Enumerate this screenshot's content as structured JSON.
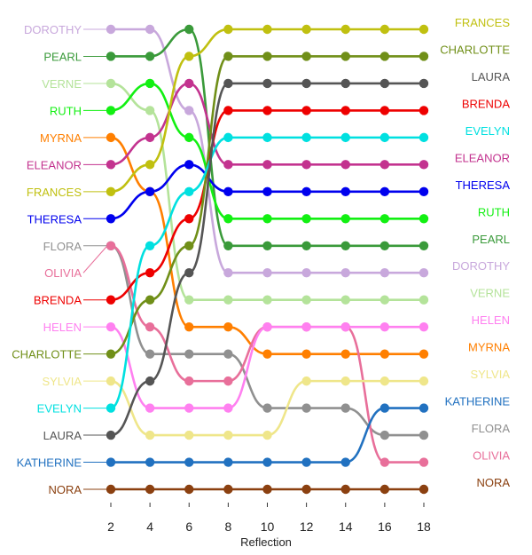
{
  "chart_data": {
    "type": "line",
    "subtype": "bump",
    "xlabel": "Reflection",
    "x": [
      2,
      4,
      6,
      8,
      10,
      12,
      14,
      16,
      18
    ],
    "xticks": [
      "2",
      "4",
      "6",
      "8",
      "10",
      "12",
      "14",
      "16",
      "18"
    ],
    "ylim": [
      1,
      18
    ],
    "grid": false,
    "legend": "none",
    "series": [
      {
        "name": "DOROTHY",
        "color": "#c8a8dc",
        "ranks": [
          1,
          1,
          4,
          10,
          10,
          10,
          10,
          10,
          10
        ]
      },
      {
        "name": "PEARL",
        "color": "#3a9a3a",
        "ranks": [
          2,
          2,
          1,
          9,
          9,
          9,
          9,
          9,
          9
        ]
      },
      {
        "name": "VERNE",
        "color": "#b4e39a",
        "ranks": [
          3,
          4,
          11,
          11,
          11,
          11,
          11,
          11,
          11
        ]
      },
      {
        "name": "RUTH",
        "color": "#12f012",
        "ranks": [
          4,
          3,
          5,
          8,
          8,
          8,
          8,
          8,
          8
        ]
      },
      {
        "name": "MYRNA",
        "color": "#ff7f00",
        "ranks": [
          5,
          7,
          12,
          12,
          13,
          13,
          13,
          13,
          13
        ]
      },
      {
        "name": "ELEANOR",
        "color": "#c3338f",
        "ranks": [
          6,
          5,
          3,
          6,
          6,
          6,
          6,
          6,
          6
        ]
      },
      {
        "name": "FRANCES",
        "color": "#c0c010",
        "ranks": [
          7,
          6,
          2,
          1,
          1,
          1,
          1,
          1,
          1
        ]
      },
      {
        "name": "THERESA",
        "color": "#0000ee",
        "ranks": [
          8,
          7,
          6,
          7,
          7,
          7,
          7,
          7,
          7
        ]
      },
      {
        "name": "FLORA",
        "color": "#909090",
        "ranks": [
          9,
          13,
          13,
          13,
          15,
          15,
          15,
          16,
          16
        ]
      },
      {
        "name": "OLIVIA",
        "color": "#e86f9a",
        "ranks": [
          9,
          12,
          14,
          14,
          12,
          12,
          12,
          17,
          17
        ]
      },
      {
        "name": "BRENDA",
        "color": "#ee0000",
        "ranks": [
          11,
          10,
          8,
          4,
          4,
          4,
          4,
          4,
          4
        ]
      },
      {
        "name": "HELEN",
        "color": "#ff80f0",
        "ranks": [
          12,
          15,
          15,
          15,
          12,
          12,
          12,
          12,
          12
        ]
      },
      {
        "name": "CHARLOTTE",
        "color": "#708f18",
        "ranks": [
          13,
          11,
          9,
          2,
          2,
          2,
          2,
          2,
          2
        ]
      },
      {
        "name": "SYLVIA",
        "color": "#efe68a",
        "ranks": [
          14,
          16,
          16,
          16,
          16,
          14,
          14,
          14,
          14
        ]
      },
      {
        "name": "EVELYN",
        "color": "#00e0e0",
        "ranks": [
          15,
          9,
          7,
          5,
          5,
          5,
          5,
          5,
          5
        ]
      },
      {
        "name": "LAURA",
        "color": "#555555",
        "ranks": [
          16,
          14,
          10,
          3,
          3,
          3,
          3,
          3,
          3
        ]
      },
      {
        "name": "KATHERINE",
        "color": "#2171c0",
        "ranks": [
          17,
          17,
          17,
          17,
          17,
          17,
          17,
          15,
          15
        ]
      },
      {
        "name": "NORA",
        "color": "#8b4010",
        "ranks": [
          18,
          18,
          18,
          18,
          18,
          18,
          18,
          18,
          18
        ]
      }
    ],
    "left_labels": [
      "DOROTHY",
      "PEARL",
      "VERNE",
      "RUTH",
      "MYRNA",
      "ELEANOR",
      "FRANCES",
      "THERESA",
      "FLORA",
      "OLIVIA",
      "BRENDA",
      "HELEN",
      "CHARLOTTE",
      "SYLVIA",
      "EVELYN",
      "LAURA",
      "KATHERINE",
      "NORA"
    ],
    "right_labels": [
      "FRANCES",
      "CHARLOTTE",
      "LAURA",
      "BRENDA",
      "EVELYN",
      "ELEANOR",
      "THERESA",
      "RUTH",
      "PEARL",
      "DOROTHY",
      "VERNE",
      "HELEN",
      "MYRNA",
      "SYLVIA",
      "KATHERINE",
      "FLORA",
      "OLIVIA",
      "NORA"
    ]
  }
}
